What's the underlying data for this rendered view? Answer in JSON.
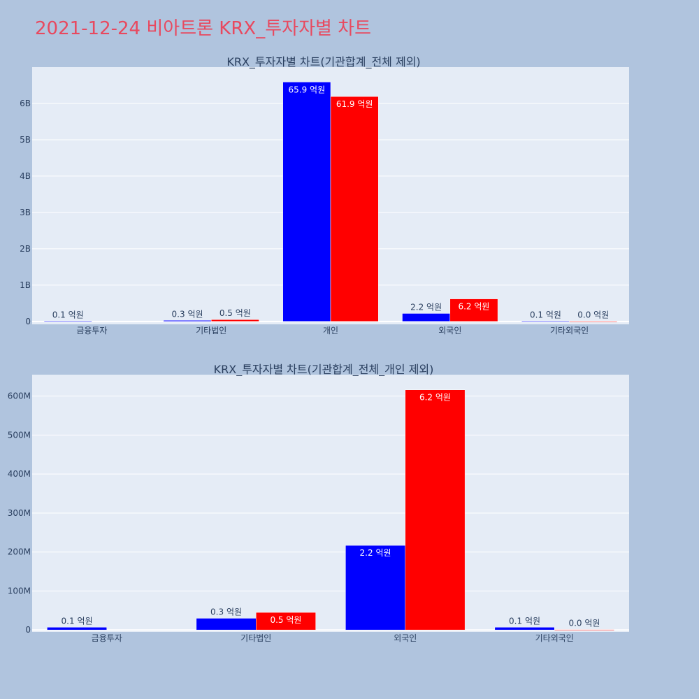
{
  "page": {
    "title": "2021-12-24 비아트론 KRX_투자자별 차트",
    "title_color": "#e8495f",
    "background": "#b0c4de",
    "plot_background": "#e5ecf6"
  },
  "chart_data": [
    {
      "type": "bar",
      "title": "KRX_투자자별 차트(기관합계_전체 제외)",
      "categories": [
        "금융투자",
        "기타법인",
        "개인",
        "외국인",
        "기타외국인"
      ],
      "series": [
        {
          "color": "#0000ff",
          "values": [
            10000000,
            30000000,
            6590000000,
            220000000,
            10000000
          ],
          "labels": [
            "0.1 억원",
            "0.3 억원",
            "65.9 억원",
            "2.2 억원",
            "0.1 억원"
          ]
        },
        {
          "color": "#ff0000",
          "values": [
            0,
            50000000,
            6190000000,
            620000000,
            3000000
          ],
          "labels": [
            "",
            "0.5 억원",
            "61.9 억원",
            "6.2 억원",
            "0.0 억원"
          ]
        }
      ],
      "ylim": [
        -80000000,
        7000000000
      ],
      "yticks": [
        0,
        1000000000,
        2000000000,
        3000000000,
        4000000000,
        5000000000,
        6000000000
      ],
      "ytick_labels": [
        "0",
        "1B",
        "2B",
        "3B",
        "4B",
        "5B",
        "6B"
      ],
      "grid": true,
      "legend": "none"
    },
    {
      "type": "bar",
      "title": "KRX_투자자별 차트(기관합계_전체_개인 제외)",
      "categories": [
        "금융투자",
        "기타법인",
        "외국인",
        "기타외국인"
      ],
      "series": [
        {
          "color": "#0000ff",
          "values": [
            7000000,
            30000000,
            217000000,
            7000000
          ],
          "labels": [
            "0.1 억원",
            "0.3 억원",
            "2.2 억원",
            "0.1 억원"
          ]
        },
        {
          "color": "#ff0000",
          "values": [
            0,
            45000000,
            616000000,
            1000000
          ],
          "labels": [
            "",
            "0.5 억원",
            "6.2 억원",
            "0.0 억원"
          ]
        }
      ],
      "ylim": [
        -5000000,
        655000000
      ],
      "yticks": [
        0,
        100000000,
        200000000,
        300000000,
        400000000,
        500000000,
        600000000
      ],
      "ytick_labels": [
        "0",
        "100M",
        "200M",
        "300M",
        "400M",
        "500M",
        "600M"
      ],
      "grid": true,
      "legend": "none"
    }
  ]
}
